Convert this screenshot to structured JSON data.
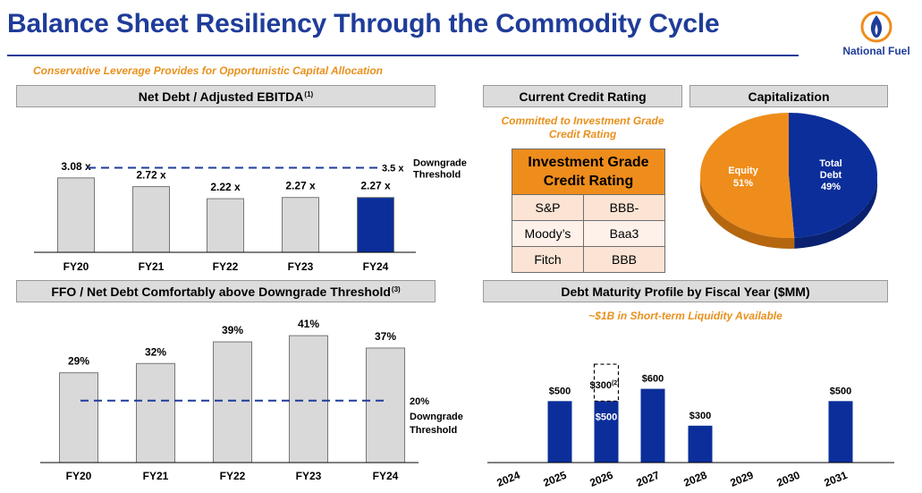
{
  "header": {
    "title": "Balance Sheet Resiliency Through the Commodity Cycle",
    "subtitle": "Conservative Leverage Provides for Opportunistic Capital Allocation",
    "logo_text": "National Fuel"
  },
  "panels": {
    "net_debt": {
      "title": "Net Debt / Adjusted EBITDA",
      "footnote": "(1)"
    },
    "credit": {
      "title": "Current Credit Rating",
      "note_line1": "Committed to Investment Grade",
      "note_line2": "Credit Rating"
    },
    "capitalization": {
      "title": "Capitalization"
    },
    "ffo": {
      "title": "FFO / Net Debt Comfortably above Downgrade Threshold",
      "footnote": "(3)"
    },
    "maturity": {
      "title": "Debt Maturity Profile by Fiscal Year ($MM)",
      "note": "~$1B in Short-term Liquidity Available"
    }
  },
  "credit_table": {
    "header_line1": "Investment Grade",
    "header_line2": "Credit Rating",
    "rows": [
      {
        "agency": "S&P",
        "rating": "BBB-"
      },
      {
        "agency": "Moody’s",
        "rating": "Baa3"
      },
      {
        "agency": "Fitch",
        "rating": "BBB"
      }
    ]
  },
  "colors": {
    "title_blue": "#1f3c99",
    "bar_gray": "#d9d9d9",
    "bar_navy": "#0b2e9a",
    "accent_orange": "#e8901c",
    "pie_orange": "#ee8d1c",
    "table_cell": "#fbe4d4"
  },
  "chart_data": [
    {
      "type": "bar",
      "title": "Net Debt / Adjusted EBITDA",
      "categories": [
        "FY20",
        "FY21",
        "FY22",
        "FY23",
        "FY24"
      ],
      "values": [
        3.08,
        2.72,
        2.22,
        2.27,
        2.27
      ],
      "labels": [
        "3.08 x",
        "2.72 x",
        "2.22 x",
        "2.27 x",
        "2.27 x"
      ],
      "highlight_index": 4,
      "threshold": {
        "value": 3.5,
        "value_label": "3.5 x",
        "label_line1": "Downgrade",
        "label_line2": "Threshold"
      },
      "ylim": [
        0,
        4
      ]
    },
    {
      "type": "pie",
      "title": "Capitalization",
      "slices": [
        {
          "name": "Total Debt",
          "name_line1": "Total",
          "name_line2": "Debt",
          "value": 49,
          "label": "49%"
        },
        {
          "name": "Equity",
          "name_line1": "Equity",
          "value": 51,
          "label": "51%"
        }
      ]
    },
    {
      "type": "bar",
      "title": "FFO / Net Debt Comfortably above Downgrade Threshold",
      "categories": [
        "FY20",
        "FY21",
        "FY22",
        "FY23",
        "FY24"
      ],
      "values": [
        29,
        32,
        39,
        41,
        37
      ],
      "labels": [
        "29%",
        "32%",
        "39%",
        "41%",
        "37%"
      ],
      "threshold": {
        "value": 20,
        "value_label": "20%",
        "label_line1": "Downgrade",
        "label_line2": "Threshold"
      },
      "ylim": [
        0,
        45
      ]
    },
    {
      "type": "bar",
      "title": "Debt Maturity Profile by Fiscal Year ($MM)",
      "categories": [
        "2024",
        "2025",
        "2026",
        "2027",
        "2028",
        "2029",
        "2030",
        "2031"
      ],
      "values": [
        0,
        500,
        500,
        600,
        300,
        0,
        0,
        500
      ],
      "labels": [
        "",
        "$500",
        "$500",
        "$600",
        "$300",
        "",
        "",
        "$500"
      ],
      "stacked_dashed": {
        "category": "2026",
        "value": 300,
        "label": "$300",
        "footnote": "(2)"
      },
      "ylim": [
        0,
        900
      ]
    }
  ]
}
